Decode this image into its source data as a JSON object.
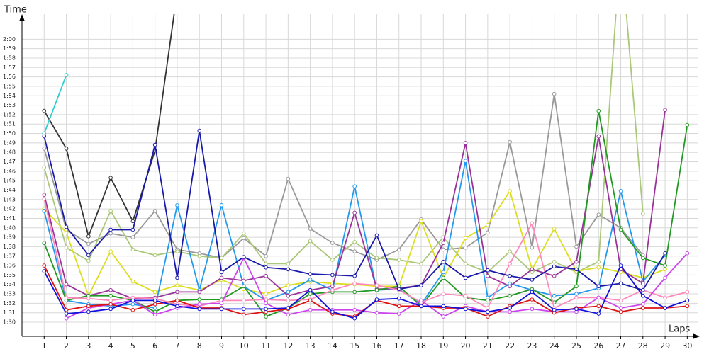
{
  "chart_data": {
    "type": "line",
    "y_label": "Time",
    "x_label": "Laps",
    "x": [
      1,
      2,
      3,
      4,
      5,
      6,
      7,
      8,
      9,
      10,
      11,
      12,
      13,
      14,
      15,
      16,
      17,
      18,
      19,
      20,
      21,
      22,
      23,
      24,
      25,
      26,
      27,
      28,
      29,
      30
    ],
    "xlim": [
      0,
      30.5
    ],
    "xticks": [
      1,
      2,
      3,
      4,
      5,
      6,
      7,
      8,
      9,
      10,
      11,
      12,
      13,
      14,
      15,
      16,
      17,
      18,
      19,
      20,
      21,
      22,
      23,
      24,
      25,
      26,
      27,
      28,
      29,
      30
    ],
    "ylim": [
      88.5,
      121.9
    ],
    "yticks": [
      {
        "value": 90,
        "label": "1:30"
      },
      {
        "value": 91,
        "label": "1:31"
      },
      {
        "value": 92,
        "label": "1:32"
      },
      {
        "value": 93,
        "label": "1:33"
      },
      {
        "value": 94,
        "label": "1:34"
      },
      {
        "value": 95,
        "label": "1:35"
      },
      {
        "value": 96,
        "label": "1:36"
      },
      {
        "value": 97,
        "label": "1:37"
      },
      {
        "value": 98,
        "label": "1:38"
      },
      {
        "value": 99,
        "label": "1:39"
      },
      {
        "value": 100,
        "label": "1:40"
      },
      {
        "value": 101,
        "label": "1:41"
      },
      {
        "value": 102,
        "label": "1:42"
      },
      {
        "value": 103,
        "label": "1:43"
      },
      {
        "value": 104,
        "label": "1:44"
      },
      {
        "value": 105,
        "label": "1:45"
      },
      {
        "value": 106,
        "label": "1:46"
      },
      {
        "value": 107,
        "label": "1:47"
      },
      {
        "value": 108,
        "label": "1:48"
      },
      {
        "value": 109,
        "label": "1:49"
      },
      {
        "value": 110,
        "label": "1:50"
      },
      {
        "value": 111,
        "label": "1:51"
      },
      {
        "value": 112,
        "label": "1:52"
      },
      {
        "value": 113,
        "label": "1:53"
      },
      {
        "value": 114,
        "label": "1:54"
      },
      {
        "value": 115,
        "label": "1:55"
      },
      {
        "value": 116,
        "label": "1:56"
      },
      {
        "value": 117,
        "label": "1:57"
      },
      {
        "value": 118,
        "label": "1:58"
      },
      {
        "value": 119,
        "label": "1:59"
      },
      {
        "value": 120,
        "label": "2:00"
      }
    ],
    "grid": true,
    "series": [
      {
        "color": "#333333",
        "values": [
          112.4,
          108.4,
          99.1,
          105.3,
          100.7,
          108.2,
          125,
          null,
          null,
          null,
          null,
          null,
          null,
          null,
          null,
          null,
          null,
          null,
          null,
          null,
          null,
          null,
          null,
          null,
          null,
          null,
          null,
          null,
          null,
          null
        ]
      },
      {
        "color": "#33cccc",
        "values": [
          110.0,
          116.2,
          null,
          null,
          null,
          null,
          null,
          null,
          null,
          null,
          null,
          null,
          null,
          null,
          null,
          null,
          null,
          null,
          null,
          null,
          null,
          null,
          null,
          null,
          null,
          null,
          null,
          null,
          null,
          null
        ]
      },
      {
        "color": "#999999",
        "values": [
          108.4,
          99.8,
          98.3,
          99.4,
          99.0,
          101.8,
          97.7,
          97.3,
          96.8,
          98.9,
          97.0,
          105.2,
          99.9,
          98.4,
          97.5,
          96.6,
          97.7,
          100.9,
          97.7,
          97.9,
          99.5,
          109.1,
          97.9,
          114.2,
          98.0,
          101.4,
          100.0,
          97.1,
          null,
          null
        ]
      },
      {
        "color": "#aac877",
        "values": [
          106.4,
          97.9,
          96.5,
          101.8,
          97.7,
          97.1,
          97.5,
          97.0,
          96.8,
          99.4,
          96.2,
          96.2,
          98.6,
          96.6,
          98.5,
          96.8,
          96.6,
          96.2,
          99.0,
          96.2,
          95.3,
          97.5,
          95.3,
          96.4,
          95.3,
          96.4,
          130,
          101.5,
          null,
          null
        ]
      },
      {
        "color": "#dddd22",
        "values": [
          102.0,
          99.5,
          92.8,
          97.5,
          94.3,
          93.2,
          93.9,
          93.4,
          94.5,
          93.5,
          93.0,
          93.9,
          94.3,
          94.1,
          94.0,
          93.8,
          93.8,
          100.7,
          94.7,
          98.9,
          100.3,
          103.9,
          95.6,
          99.9,
          95.4,
          95.8,
          95.3,
          94.7,
          95.6,
          null
        ]
      },
      {
        "color": "#2299ee",
        "values": [
          101.8,
          92.3,
          91.9,
          91.7,
          91.9,
          91.5,
          102.4,
          93.4,
          102.4,
          93.8,
          92.3,
          93.2,
          94.5,
          93.4,
          104.4,
          93.4,
          93.5,
          91.9,
          95.3,
          107.1,
          92.6,
          94.1,
          93.4,
          92.8,
          93.0,
          93.6,
          103.9,
          94.3,
          97.1,
          null
        ]
      },
      {
        "color": "#993399",
        "values": [
          103.5,
          94.0,
          92.8,
          93.4,
          92.5,
          92.6,
          93.2,
          93.2,
          94.7,
          94.4,
          94.9,
          92.8,
          93.4,
          93.8,
          101.6,
          93.5,
          93.6,
          93.9,
          98.4,
          109.0,
          94.9,
          93.8,
          95.6,
          94.9,
          96.4,
          109.7,
          95.6,
          94.1,
          112.5,
          null
        ]
      },
      {
        "color": "#229922",
        "values": [
          98.4,
          92.3,
          92.8,
          92.8,
          92.3,
          91.1,
          92.3,
          92.4,
          92.4,
          93.8,
          90.6,
          91.5,
          93.0,
          93.2,
          93.2,
          93.4,
          93.8,
          91.7,
          94.7,
          92.6,
          92.3,
          92.8,
          93.5,
          92.1,
          93.8,
          112.4,
          99.8,
          96.8,
          96.0,
          110.9
        ]
      },
      {
        "color": "#ff88bb",
        "values": [
          103.1,
          92.6,
          92.5,
          92.3,
          92.6,
          92.5,
          91.9,
          91.7,
          92.3,
          92.3,
          92.4,
          92.3,
          92.4,
          93.4,
          94.1,
          93.9,
          93.4,
          92.1,
          93.0,
          92.8,
          91.5,
          96.2,
          100.5,
          91.5,
          92.6,
          92.6,
          92.3,
          93.4,
          92.6,
          93.2
        ]
      },
      {
        "color": "#cc44ee",
        "values": [
          null,
          90.4,
          91.5,
          91.9,
          92.3,
          90.8,
          91.5,
          91.9,
          92.0,
          96.8,
          92.0,
          90.8,
          91.3,
          91.3,
          91.3,
          91.0,
          90.9,
          92.3,
          90.6,
          91.7,
          91.1,
          91.1,
          91.4,
          91.1,
          91.1,
          92.6,
          91.5,
          91.9,
          94.7,
          97.3
        ]
      },
      {
        "color": "#dd1111",
        "values": [
          96.0,
          91.3,
          91.7,
          91.9,
          91.3,
          91.9,
          92.3,
          91.5,
          91.5,
          90.8,
          91.1,
          91.4,
          92.3,
          90.9,
          90.6,
          92.3,
          91.7,
          91.7,
          91.5,
          91.5,
          90.6,
          91.7,
          92.4,
          91.0,
          91.5,
          91.7,
          91.1,
          91.5,
          91.5,
          91.7
        ]
      },
      {
        "color": "#1111dd",
        "values": [
          95.4,
          90.9,
          91.1,
          91.4,
          92.3,
          92.3,
          91.7,
          91.4,
          91.4,
          91.4,
          91.4,
          91.5,
          93.4,
          91.1,
          90.4,
          92.4,
          92.5,
          91.7,
          91.7,
          91.4,
          91.1,
          91.5,
          93.2,
          91.3,
          91.4,
          90.9,
          96.0,
          92.8,
          91.5,
          92.3
        ]
      },
      {
        "color": "#1a1aaa",
        "values": [
          109.7,
          100.1,
          97.1,
          99.8,
          99.8,
          108.8,
          94.7,
          110.3,
          95.3,
          96.9,
          95.8,
          95.6,
          95.1,
          95.0,
          94.9,
          99.2,
          93.5,
          93.9,
          96.4,
          94.7,
          95.5,
          94.9,
          94.5,
          95.9,
          95.6,
          93.8,
          94.1,
          93.4,
          97.3,
          null
        ]
      }
    ]
  }
}
